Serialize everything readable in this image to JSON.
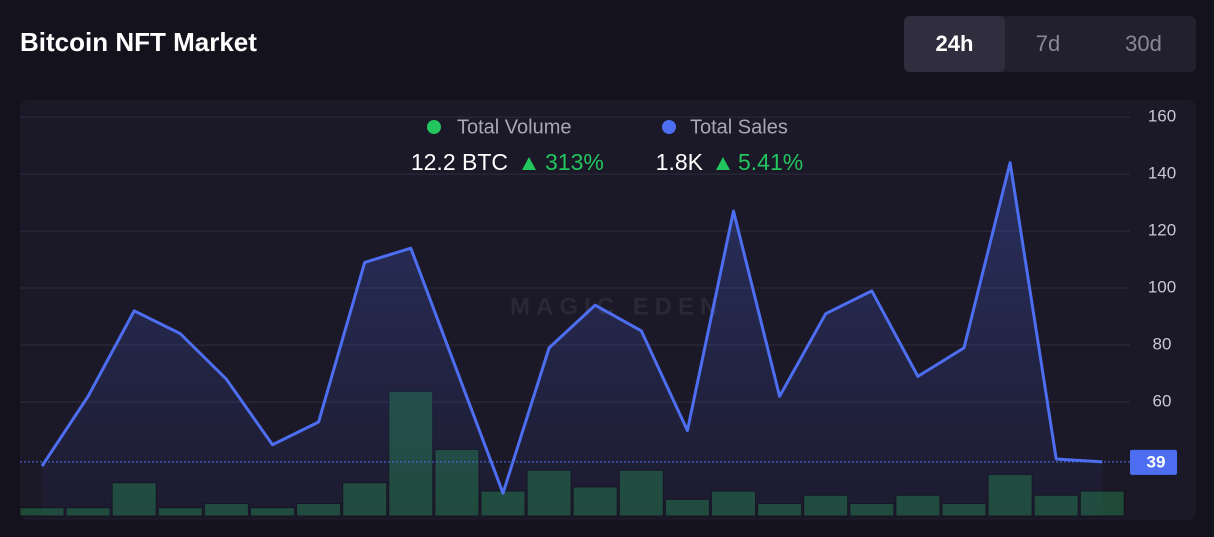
{
  "header": {
    "title": "Bitcoin NFT Market",
    "tabs": [
      "24h",
      "7d",
      "30d"
    ],
    "active_tab": 0
  },
  "chart_data": {
    "type": "line",
    "watermark": "MAGIC EDEN",
    "series": [
      {
        "name": "Total Volume",
        "type": "bar",
        "axis": "y2",
        "color": "#1f4a38",
        "legend_color": "#22c55e",
        "values": [
          2,
          2,
          8,
          2,
          3,
          2,
          3,
          8,
          30,
          16,
          6,
          11,
          7,
          11,
          4,
          6,
          3,
          5,
          3,
          5,
          3,
          10,
          5,
          6
        ]
      },
      {
        "name": "Total Sales",
        "type": "line",
        "color": "#4d6ef0",
        "legend_color": "#4d6ef0",
        "values": [
          37.5,
          62,
          92,
          84,
          68,
          45,
          53,
          109,
          114,
          71,
          28,
          79,
          94,
          85,
          50,
          127,
          62,
          91,
          99,
          69,
          79,
          144,
          40,
          39
        ]
      }
    ],
    "summary": [
      {
        "value": "12.2 BTC",
        "change": "313%"
      },
      {
        "value": "1.8K",
        "change": "5.41%"
      }
    ],
    "ylim": [
      20,
      166
    ],
    "yticks": [
      60,
      80,
      100,
      120,
      140,
      160
    ],
    "y2lim": [
      0,
      100
    ],
    "grid": true
  }
}
